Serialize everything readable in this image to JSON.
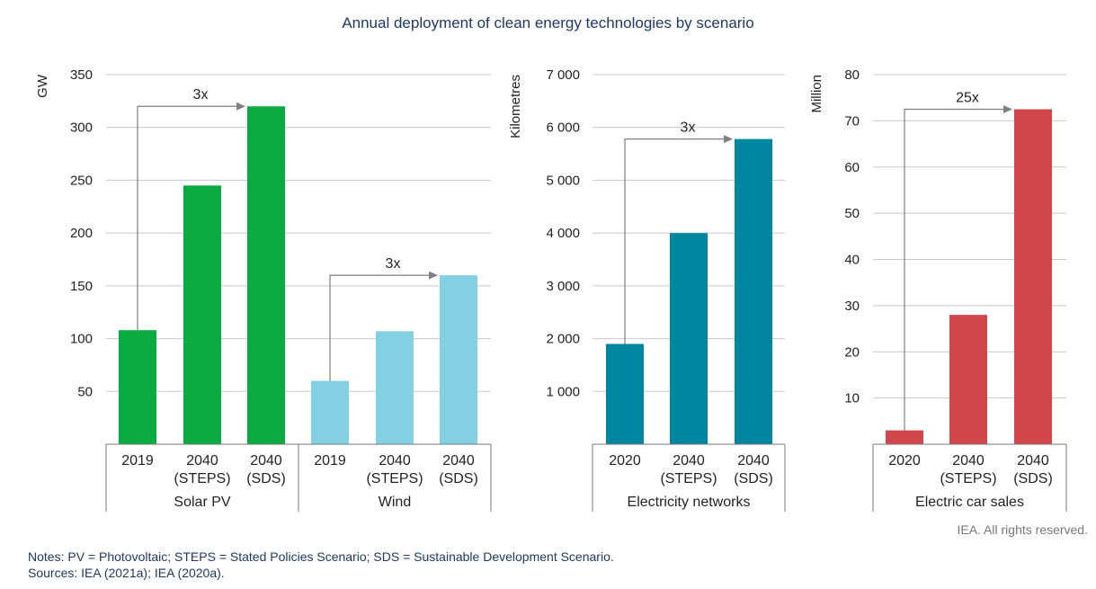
{
  "title": "Annual deployment of clean energy technologies by scenario",
  "credit": "IEA. All rights reserved.",
  "notes": "Notes: PV = Photovoltaic; STEPS = Stated Policies Scenario; SDS = Sustainable Development Scenario.",
  "sources": "Sources: IEA (2021a); IEA (2020a).",
  "colors": {
    "solar": "#0aab40",
    "wind": "#82d0e2",
    "networks": "#00869e",
    "cars": "#d2454b",
    "grid": "#c8c8c8",
    "arrow": "#7f7f7f"
  },
  "chart_data": [
    {
      "type": "bar",
      "ylabel": "GW",
      "ylim": [
        0,
        350
      ],
      "yticks": [
        50,
        100,
        150,
        200,
        250,
        300,
        350
      ],
      "yticklabels": [
        "50",
        "100",
        "150",
        "200",
        "250",
        "300",
        "350"
      ],
      "groups": [
        {
          "name": "Solar PV",
          "color": "#0aab40",
          "categories": [
            [
              "2019"
            ],
            [
              "2040",
              "(STEPS)"
            ],
            [
              "2040",
              "(SDS)"
            ]
          ],
          "values": [
            108,
            245,
            320
          ],
          "annotation": {
            "label": "3x",
            "from_index": 0,
            "to_index": 2,
            "level": 320
          }
        },
        {
          "name": "Wind",
          "color": "#82d0e2",
          "categories": [
            [
              "2019"
            ],
            [
              "2040",
              "(STEPS)"
            ],
            [
              "2040",
              "(SDS)"
            ]
          ],
          "values": [
            60,
            107,
            160
          ],
          "annotation": {
            "label": "3x",
            "from_index": 0,
            "to_index": 2,
            "level": 160
          }
        }
      ]
    },
    {
      "type": "bar",
      "ylabel": "Kilometres",
      "ylim": [
        0,
        7000
      ],
      "yticks": [
        1000,
        2000,
        3000,
        4000,
        5000,
        6000,
        7000
      ],
      "yticklabels": [
        "1 000",
        "2 000",
        "3 000",
        "4 000",
        "5 000",
        "6 000",
        "7 000"
      ],
      "groups": [
        {
          "name": "Electricity networks",
          "color": "#00869e",
          "categories": [
            [
              "2020"
            ],
            [
              "2040",
              "(STEPS)"
            ],
            [
              "2040",
              "(SDS)"
            ]
          ],
          "values": [
            1900,
            4000,
            5780
          ],
          "annotation": {
            "label": "3x",
            "from_index": 0,
            "to_index": 2,
            "level": 5780
          }
        }
      ]
    },
    {
      "type": "bar",
      "ylabel": "Million",
      "ylim": [
        0,
        80
      ],
      "yticks": [
        10,
        20,
        30,
        40,
        50,
        60,
        70,
        80
      ],
      "yticklabels": [
        "10",
        "20",
        "30",
        "40",
        "50",
        "60",
        "70",
        "80"
      ],
      "groups": [
        {
          "name": "Electric car sales",
          "color": "#d2454b",
          "categories": [
            [
              "2020"
            ],
            [
              "2040",
              "(STEPS)"
            ],
            [
              "2040",
              "(SDS)"
            ]
          ],
          "values": [
            3,
            28,
            72.5
          ],
          "annotation": {
            "label": "25x",
            "from_index": 0,
            "to_index": 2,
            "level": 72.5
          }
        }
      ]
    }
  ]
}
